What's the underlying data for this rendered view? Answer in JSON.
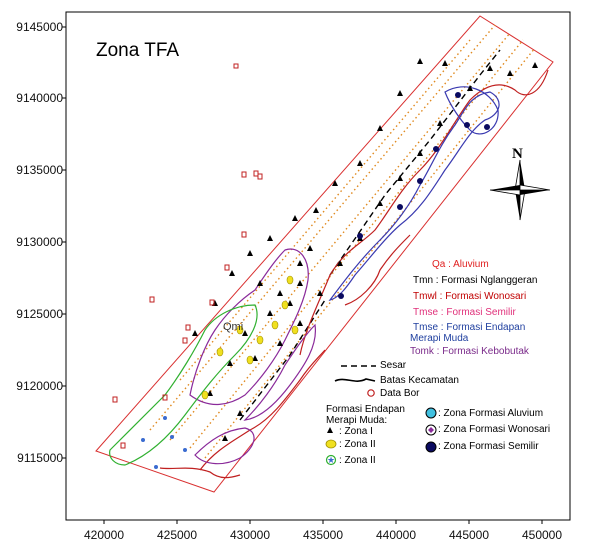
{
  "map": {
    "title": "Zona TFA",
    "y_axis_labels": [
      "9145000",
      "9140000",
      "9135000",
      "9130000",
      "9125000",
      "9120000",
      "9115000"
    ],
    "x_axis_labels": [
      "420000",
      "425000",
      "430000",
      "435000",
      "440000",
      "445000",
      "450000"
    ],
    "north_label": "N",
    "map_label_qmi": "Qmi"
  },
  "geology_legend": [
    {
      "text": "Qa : Aluvium",
      "color": "#e02020"
    },
    {
      "text": "Tmn : Formasi Nglanggeran",
      "color": "#000000"
    },
    {
      "text": "Tmwl : Formasi Wonosari",
      "color": "#c00000"
    },
    {
      "text": "Tmse : Formasi Semilir",
      "color": "#e0307a"
    },
    {
      "text": "Tmse : Formasi Endapan",
      "color": "#1f3f9f"
    },
    {
      "text": "Merapi Muda",
      "color": "#1f3f9f"
    },
    {
      "text": "Tomk : Formasi Kebobutak",
      "color": "#7a2a8a"
    }
  ],
  "line_legend": {
    "fault": "Sesar",
    "district": "Batas Kecamatan",
    "borehole": "Data Bor"
  },
  "zone_legend": {
    "heading_line1": "Formasi Endapan",
    "heading_line2": "Merapi Muda:",
    "zone_1": ": Zona I",
    "zone_2a": ": Zona II",
    "zone_2b": ": Zona II"
  },
  "formation_zone_legend": {
    "aluvium": ": Zona Formasi Aluvium",
    "wonosari": ": Zona Formasi Wonosari",
    "semilir": ": Zona Formasi Semilir"
  },
  "colors": {
    "frame": "#d93030",
    "contour_blue": "#3a3ab0",
    "contour_purple": "#8a2a9a",
    "contour_green": "#30b030",
    "dotted_orange": "#e08a20",
    "river_red": "#c02020",
    "zone2_yellow": "#f0e020"
  }
}
